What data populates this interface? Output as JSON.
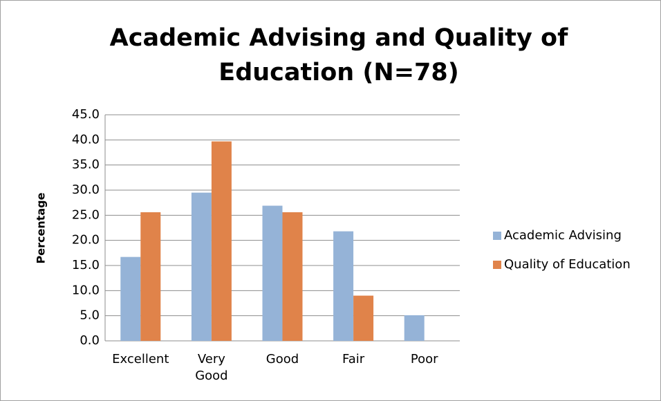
{
  "chart_data": {
    "type": "bar",
    "title": "Academic Advising and Quality of Education (N=78)",
    "y_label": "Percentage",
    "categories": [
      "Excellent",
      "Very Good",
      "Good",
      "Fair",
      "Poor"
    ],
    "series": [
      {
        "name": "Academic Advising",
        "color": "#95b3d7",
        "values": [
          16.7,
          29.5,
          26.9,
          21.8,
          5.1
        ]
      },
      {
        "name": "Quality of Education",
        "color": "#e0834a",
        "values": [
          25.6,
          39.7,
          25.6,
          9.0,
          0
        ]
      }
    ],
    "ylim": [
      0,
      45
    ],
    "yticks": [
      {
        "value": 0,
        "label": "0.0"
      },
      {
        "value": 5,
        "label": "5.0"
      },
      {
        "value": 10,
        "label": "10.0"
      },
      {
        "value": 15,
        "label": "15.0"
      },
      {
        "value": 20,
        "label": "20.0"
      },
      {
        "value": 25,
        "label": "25.0"
      },
      {
        "value": 30,
        "label": "30.0"
      },
      {
        "value": 35,
        "label": "35.0"
      },
      {
        "value": 40,
        "label": "40.0"
      },
      {
        "value": 45,
        "label": "45.0"
      }
    ],
    "grid": true,
    "legend": "right"
  }
}
